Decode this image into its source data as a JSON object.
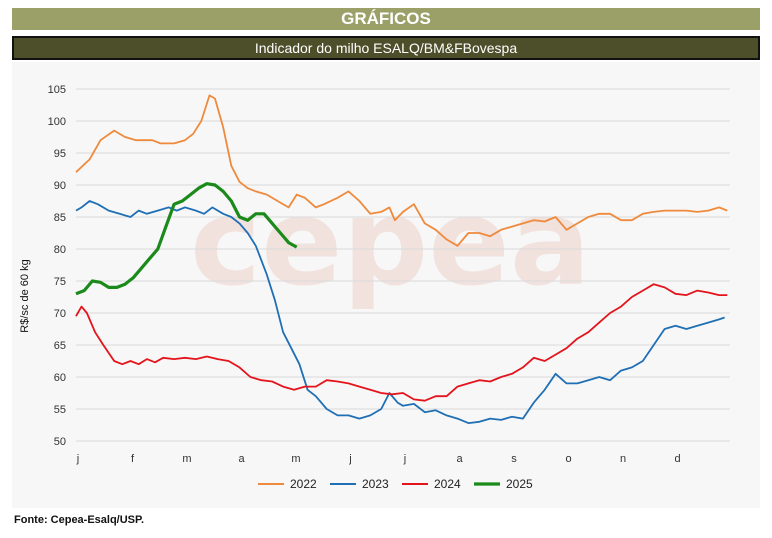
{
  "header": {
    "title": "GRÁFICOS",
    "subtitle": "Indicador do milho ESALQ/BM&FBovespa"
  },
  "source": "Fonte: Cepea-Esalq/USP.",
  "watermark": "cepea",
  "colors": {
    "title_bar": "#9aa068",
    "subtitle_bar": "#4d4f2b",
    "s2022": "#ef8a3c",
    "s2023": "#1f6fb5",
    "s2024": "#e3141b",
    "s2025": "#1a8a1a"
  },
  "chart_data": {
    "type": "line",
    "title": "Indicador do milho ESALQ/BM&FBovespa",
    "ylabel": "R$/sc de 60 kg",
    "ylim": [
      50,
      105
    ],
    "yticks": [
      50,
      55,
      60,
      65,
      70,
      75,
      80,
      85,
      90,
      95,
      100,
      105
    ],
    "xlim": [
      0,
      12
    ],
    "months": [
      "j",
      "f",
      "m",
      "a",
      "m",
      "j",
      "j",
      "a",
      "s",
      "o",
      "n",
      "d"
    ],
    "grid": "horizontal",
    "legend_position": "bottom",
    "series": [
      {
        "name": "2022",
        "color": "#ef8a3c",
        "x": [
          0,
          0.25,
          0.45,
          0.7,
          0.9,
          1.1,
          1.4,
          1.55,
          1.8,
          2.0,
          2.15,
          2.3,
          2.45,
          2.55,
          2.7,
          2.85,
          3.0,
          3.15,
          3.3,
          3.5,
          3.7,
          3.9,
          4.05,
          4.2,
          4.4,
          4.55,
          4.8,
          5.0,
          5.2,
          5.4,
          5.6,
          5.75,
          5.85,
          6.0,
          6.2,
          6.4,
          6.6,
          6.8,
          7.0,
          7.2,
          7.4,
          7.6,
          7.8,
          8.0,
          8.2,
          8.4,
          8.6,
          8.8,
          9.0,
          9.2,
          9.4,
          9.6,
          9.8,
          10.0,
          10.2,
          10.4,
          10.6,
          10.8,
          11.0,
          11.2,
          11.4,
          11.6,
          11.8,
          11.95
        ],
        "y": [
          92,
          94,
          97,
          98.5,
          97.5,
          97,
          97,
          96.5,
          96.5,
          97,
          98,
          100,
          104,
          103.5,
          99,
          93,
          90.5,
          89.5,
          89,
          88.5,
          87.5,
          86.5,
          88.5,
          88,
          86.5,
          87,
          88,
          89,
          87.5,
          85.5,
          85.8,
          86.5,
          84.5,
          85.8,
          87,
          84,
          83,
          81.5,
          80.5,
          82.5,
          82.5,
          82,
          83,
          83.5,
          84,
          84.5,
          84.3,
          85,
          83,
          84,
          85,
          85.5,
          85.5,
          84.5,
          84.5,
          85.5,
          85.8,
          86,
          86,
          86,
          85.8,
          86,
          86.5,
          86
        ]
      },
      {
        "name": "2023",
        "color": "#1f6fb5",
        "x": [
          0,
          0.1,
          0.25,
          0.4,
          0.6,
          0.8,
          1.0,
          1.15,
          1.3,
          1.5,
          1.7,
          1.85,
          2.0,
          2.2,
          2.35,
          2.5,
          2.7,
          2.85,
          3.0,
          3.15,
          3.3,
          3.5,
          3.65,
          3.8,
          3.95,
          4.1,
          4.25,
          4.4,
          4.6,
          4.8,
          5.0,
          5.2,
          5.4,
          5.6,
          5.75,
          5.9,
          6.0,
          6.2,
          6.4,
          6.6,
          6.8,
          7.0,
          7.2,
          7.4,
          7.6,
          7.8,
          8.0,
          8.2,
          8.4,
          8.6,
          8.8,
          9.0,
          9.2,
          9.4,
          9.6,
          9.8,
          10.0,
          10.2,
          10.4,
          10.6,
          10.8,
          11.0,
          11.2,
          11.4,
          11.6,
          11.8,
          11.9
        ],
        "y": [
          86,
          86.5,
          87.5,
          87,
          86,
          85.5,
          85,
          86,
          85.5,
          86,
          86.5,
          86,
          86.5,
          86,
          85.5,
          86.5,
          85.5,
          85,
          84,
          82.5,
          80.5,
          76,
          72,
          67,
          64.5,
          62,
          58,
          57,
          55,
          54,
          54,
          53.5,
          54,
          55,
          57.5,
          56,
          55.5,
          55.8,
          54.5,
          54.8,
          54,
          53.5,
          52.8,
          53,
          53.5,
          53.3,
          53.8,
          53.5,
          56,
          58,
          60.5,
          59,
          59,
          59.5,
          60,
          59.5,
          61,
          61.5,
          62.5,
          65,
          67.5,
          68,
          67.5,
          68,
          68.5,
          69,
          69.3
        ]
      },
      {
        "name": "2024",
        "color": "#e3141b",
        "x": [
          0,
          0.1,
          0.2,
          0.35,
          0.5,
          0.7,
          0.85,
          1.0,
          1.15,
          1.3,
          1.45,
          1.6,
          1.8,
          2.0,
          2.2,
          2.4,
          2.6,
          2.8,
          3.0,
          3.2,
          3.4,
          3.6,
          3.8,
          4.0,
          4.2,
          4.4,
          4.6,
          4.8,
          5.0,
          5.2,
          5.4,
          5.6,
          5.8,
          6.0,
          6.2,
          6.4,
          6.6,
          6.8,
          7.0,
          7.2,
          7.4,
          7.6,
          7.8,
          8.0,
          8.2,
          8.4,
          8.6,
          8.8,
          9.0,
          9.2,
          9.4,
          9.6,
          9.8,
          10.0,
          10.2,
          10.4,
          10.6,
          10.8,
          11.0,
          11.2,
          11.4,
          11.6,
          11.8,
          11.95
        ],
        "y": [
          69.5,
          71,
          70,
          67,
          65,
          62.5,
          62,
          62.5,
          62,
          62.8,
          62.3,
          63,
          62.8,
          63,
          62.8,
          63.2,
          62.8,
          62.5,
          61.5,
          60,
          59.5,
          59.3,
          58.5,
          58,
          58.5,
          58.5,
          59.5,
          59.3,
          59,
          58.5,
          58,
          57.5,
          57.3,
          57.5,
          56.5,
          56.3,
          57,
          57,
          58.5,
          59,
          59.5,
          59.3,
          60,
          60.5,
          61.5,
          63,
          62.5,
          63.5,
          64.5,
          66,
          67,
          68.5,
          70,
          71,
          72.5,
          73.5,
          74.5,
          74,
          73,
          72.8,
          73.5,
          73.2,
          72.8,
          72.8
        ]
      },
      {
        "name": "2025",
        "color": "#1a8a1a",
        "x": [
          0,
          0.15,
          0.3,
          0.45,
          0.6,
          0.75,
          0.9,
          1.05,
          1.2,
          1.35,
          1.5,
          1.65,
          1.8,
          1.95,
          2.1,
          2.25,
          2.4,
          2.55,
          2.7,
          2.85,
          3.0,
          3.15,
          3.3,
          3.45,
          3.6,
          3.75,
          3.9,
          4.05
        ],
        "y": [
          73,
          73.5,
          75,
          74.8,
          74,
          74,
          74.5,
          75.5,
          77,
          78.5,
          80,
          83.5,
          87,
          87.5,
          88.5,
          89.5,
          90.2,
          90,
          89,
          87.5,
          85,
          84.5,
          85.5,
          85.5,
          84,
          82.5,
          81,
          80.3
        ]
      }
    ]
  }
}
